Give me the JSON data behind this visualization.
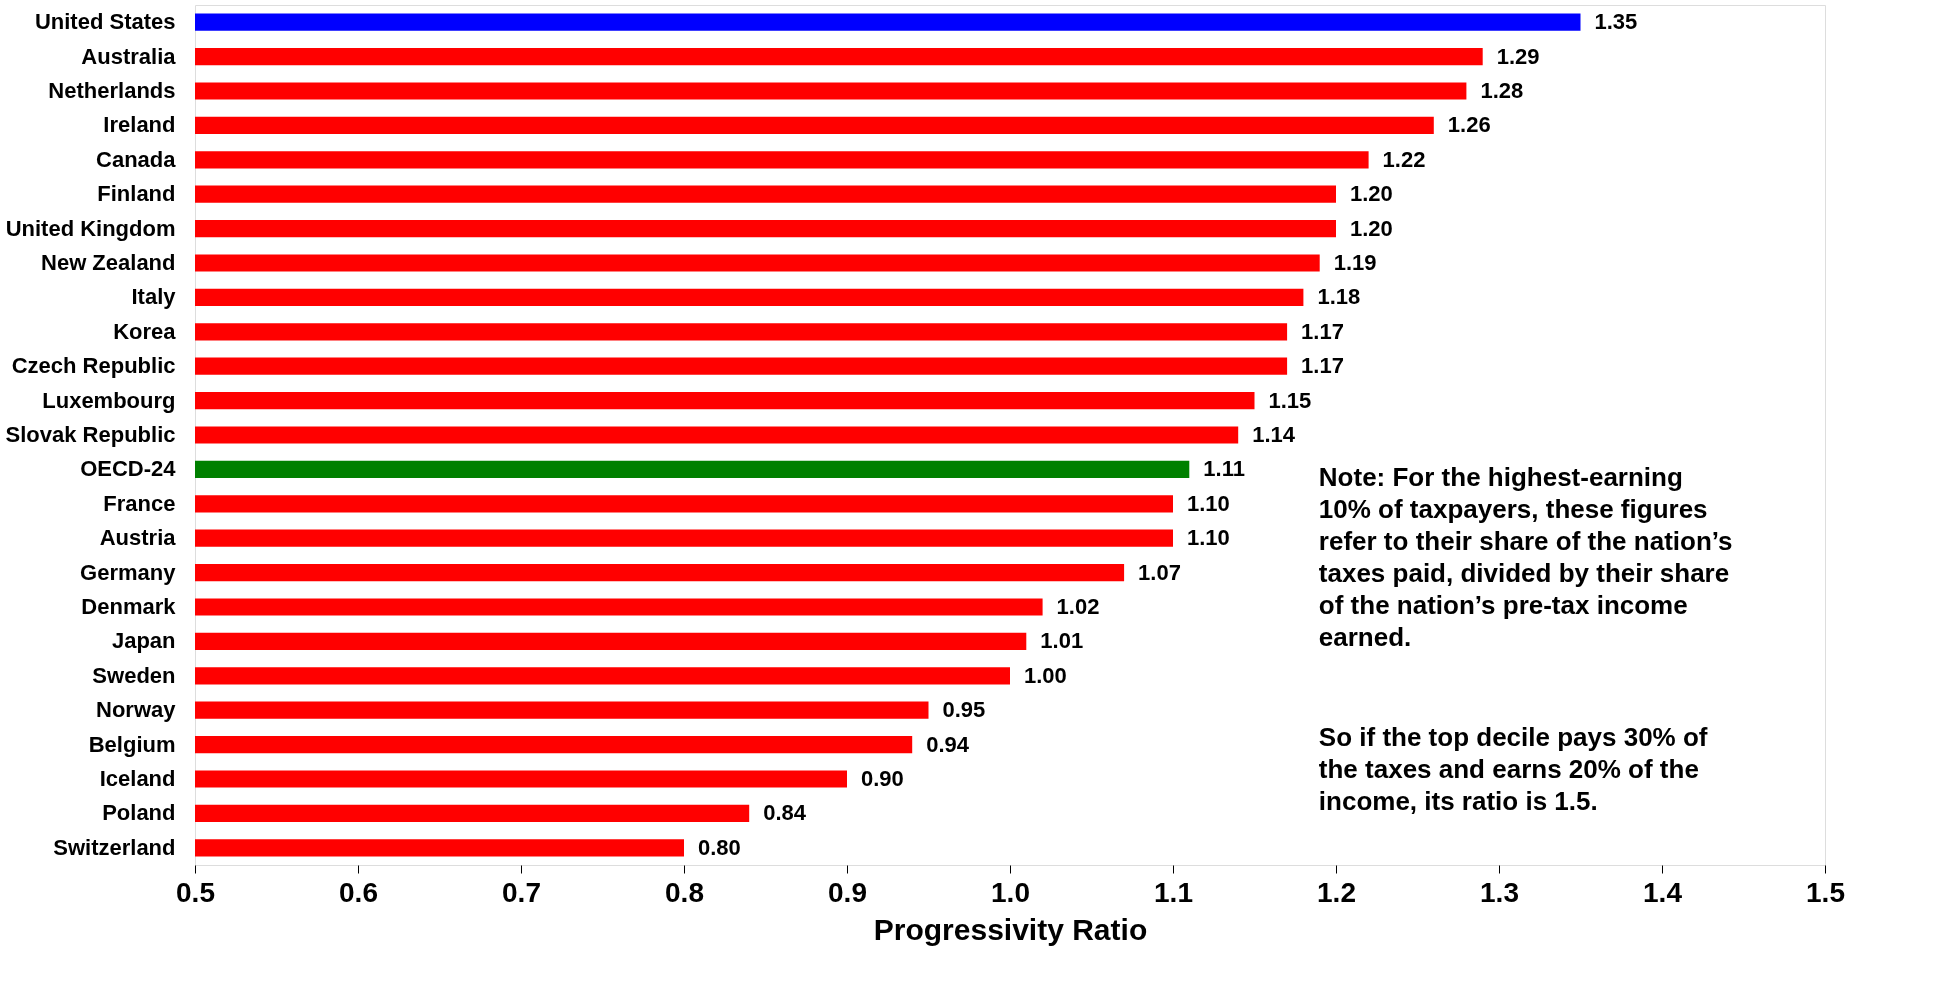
{
  "chart_data": {
    "type": "bar",
    "orientation": "horizontal",
    "xlabel": "Progressivity Ratio",
    "categories": [
      "United States",
      "Australia",
      "Netherlands",
      "Ireland",
      "Canada",
      "Finland",
      "United Kingdom",
      "New Zealand",
      "Italy",
      "Korea",
      "Czech Republic",
      "Luxembourg",
      "Slovak Republic",
      "OECD-24",
      "France",
      "Austria",
      "Germany",
      "Denmark",
      "Japan",
      "Sweden",
      "Norway",
      "Belgium",
      "Iceland",
      "Poland",
      "Switzerland"
    ],
    "values": [
      1.35,
      1.29,
      1.28,
      1.26,
      1.22,
      1.2,
      1.2,
      1.19,
      1.18,
      1.17,
      1.17,
      1.15,
      1.14,
      1.11,
      1.1,
      1.1,
      1.07,
      1.02,
      1.01,
      1.0,
      0.95,
      0.94,
      0.9,
      0.84,
      0.8
    ],
    "value_labels": [
      "1.35",
      "1.29",
      "1.28",
      "1.26",
      "1.22",
      "1.20",
      "1.20",
      "1.19",
      "1.18",
      "1.17",
      "1.17",
      "1.15",
      "1.14",
      "1.11",
      "1.10",
      "1.10",
      "1.07",
      "1.02",
      "1.01",
      "1.00",
      "0.95",
      "0.94",
      "0.90",
      "0.84",
      "0.80"
    ],
    "colors": [
      "#0000ff",
      "#ff0000",
      "#ff0000",
      "#ff0000",
      "#ff0000",
      "#ff0000",
      "#ff0000",
      "#ff0000",
      "#ff0000",
      "#ff0000",
      "#ff0000",
      "#ff0000",
      "#ff0000",
      "#008000",
      "#ff0000",
      "#ff0000",
      "#ff0000",
      "#ff0000",
      "#ff0000",
      "#ff0000",
      "#ff0000",
      "#ff0000",
      "#ff0000",
      "#ff0000",
      "#ff0000"
    ],
    "xlim": [
      0.5,
      1.5
    ],
    "xticks": [
      0.5,
      0.6,
      0.7,
      0.8,
      0.9,
      {
        "value": 1,
        "label": "1.0"
      },
      1.1,
      1.2,
      1.3,
      1.4,
      1.5
    ],
    "grid": false,
    "legend": false,
    "annotations": [
      "Note: For the highest-earning\n10% of taxpayers, these figures\nrefer to their share of the nation’s\ntaxes paid, divided by their share\nof the nation’s pre-tax income\nearned.",
      "So if the top decile pays 30% of\nthe taxes and earns 20% of the\nincome, its ratio is 1.5."
    ]
  }
}
